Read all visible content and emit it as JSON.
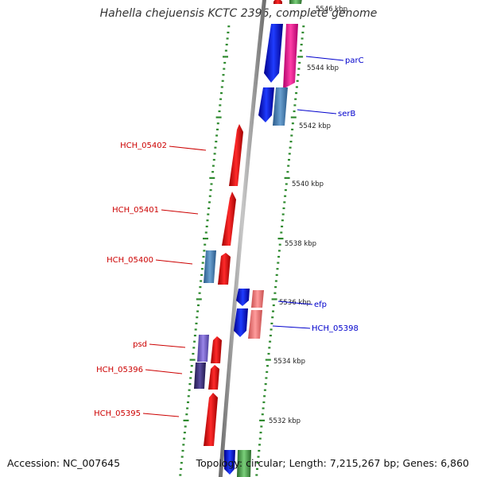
{
  "title": "Hahella chejuensis KCTC 2396, complete genome",
  "accession_text": "Accession: NC_007645",
  "stats_text": "Topology: circular; Length: 7,215,267 bp; Genes: 6,860",
  "colors": {
    "backbone": "#8c8c8c",
    "tick": "#2f8a2f",
    "plus_label": "#cc0000",
    "minus_label": "#0000cc"
  },
  "kbp_labels": [
    "5546 kbp",
    "5544 kbp",
    "5542 kbp",
    "5540 kbp",
    "5538 kbp",
    "5536 kbp",
    "5534 kbp",
    "5532 kbp"
  ],
  "gene_labels": [
    {
      "text": "parC",
      "side": "right"
    },
    {
      "text": "serB",
      "side": "right"
    },
    {
      "text": "HCH_05402",
      "side": "left"
    },
    {
      "text": "HCH_05401",
      "side": "left"
    },
    {
      "text": "HCH_05400",
      "side": "left"
    },
    {
      "text": "efp",
      "side": "right"
    },
    {
      "text": "HCH_05398",
      "side": "right"
    },
    {
      "text": "psd",
      "side": "left"
    },
    {
      "text": "HCH_05396",
      "side": "left"
    },
    {
      "text": "HCH_05395",
      "side": "left"
    }
  ]
}
